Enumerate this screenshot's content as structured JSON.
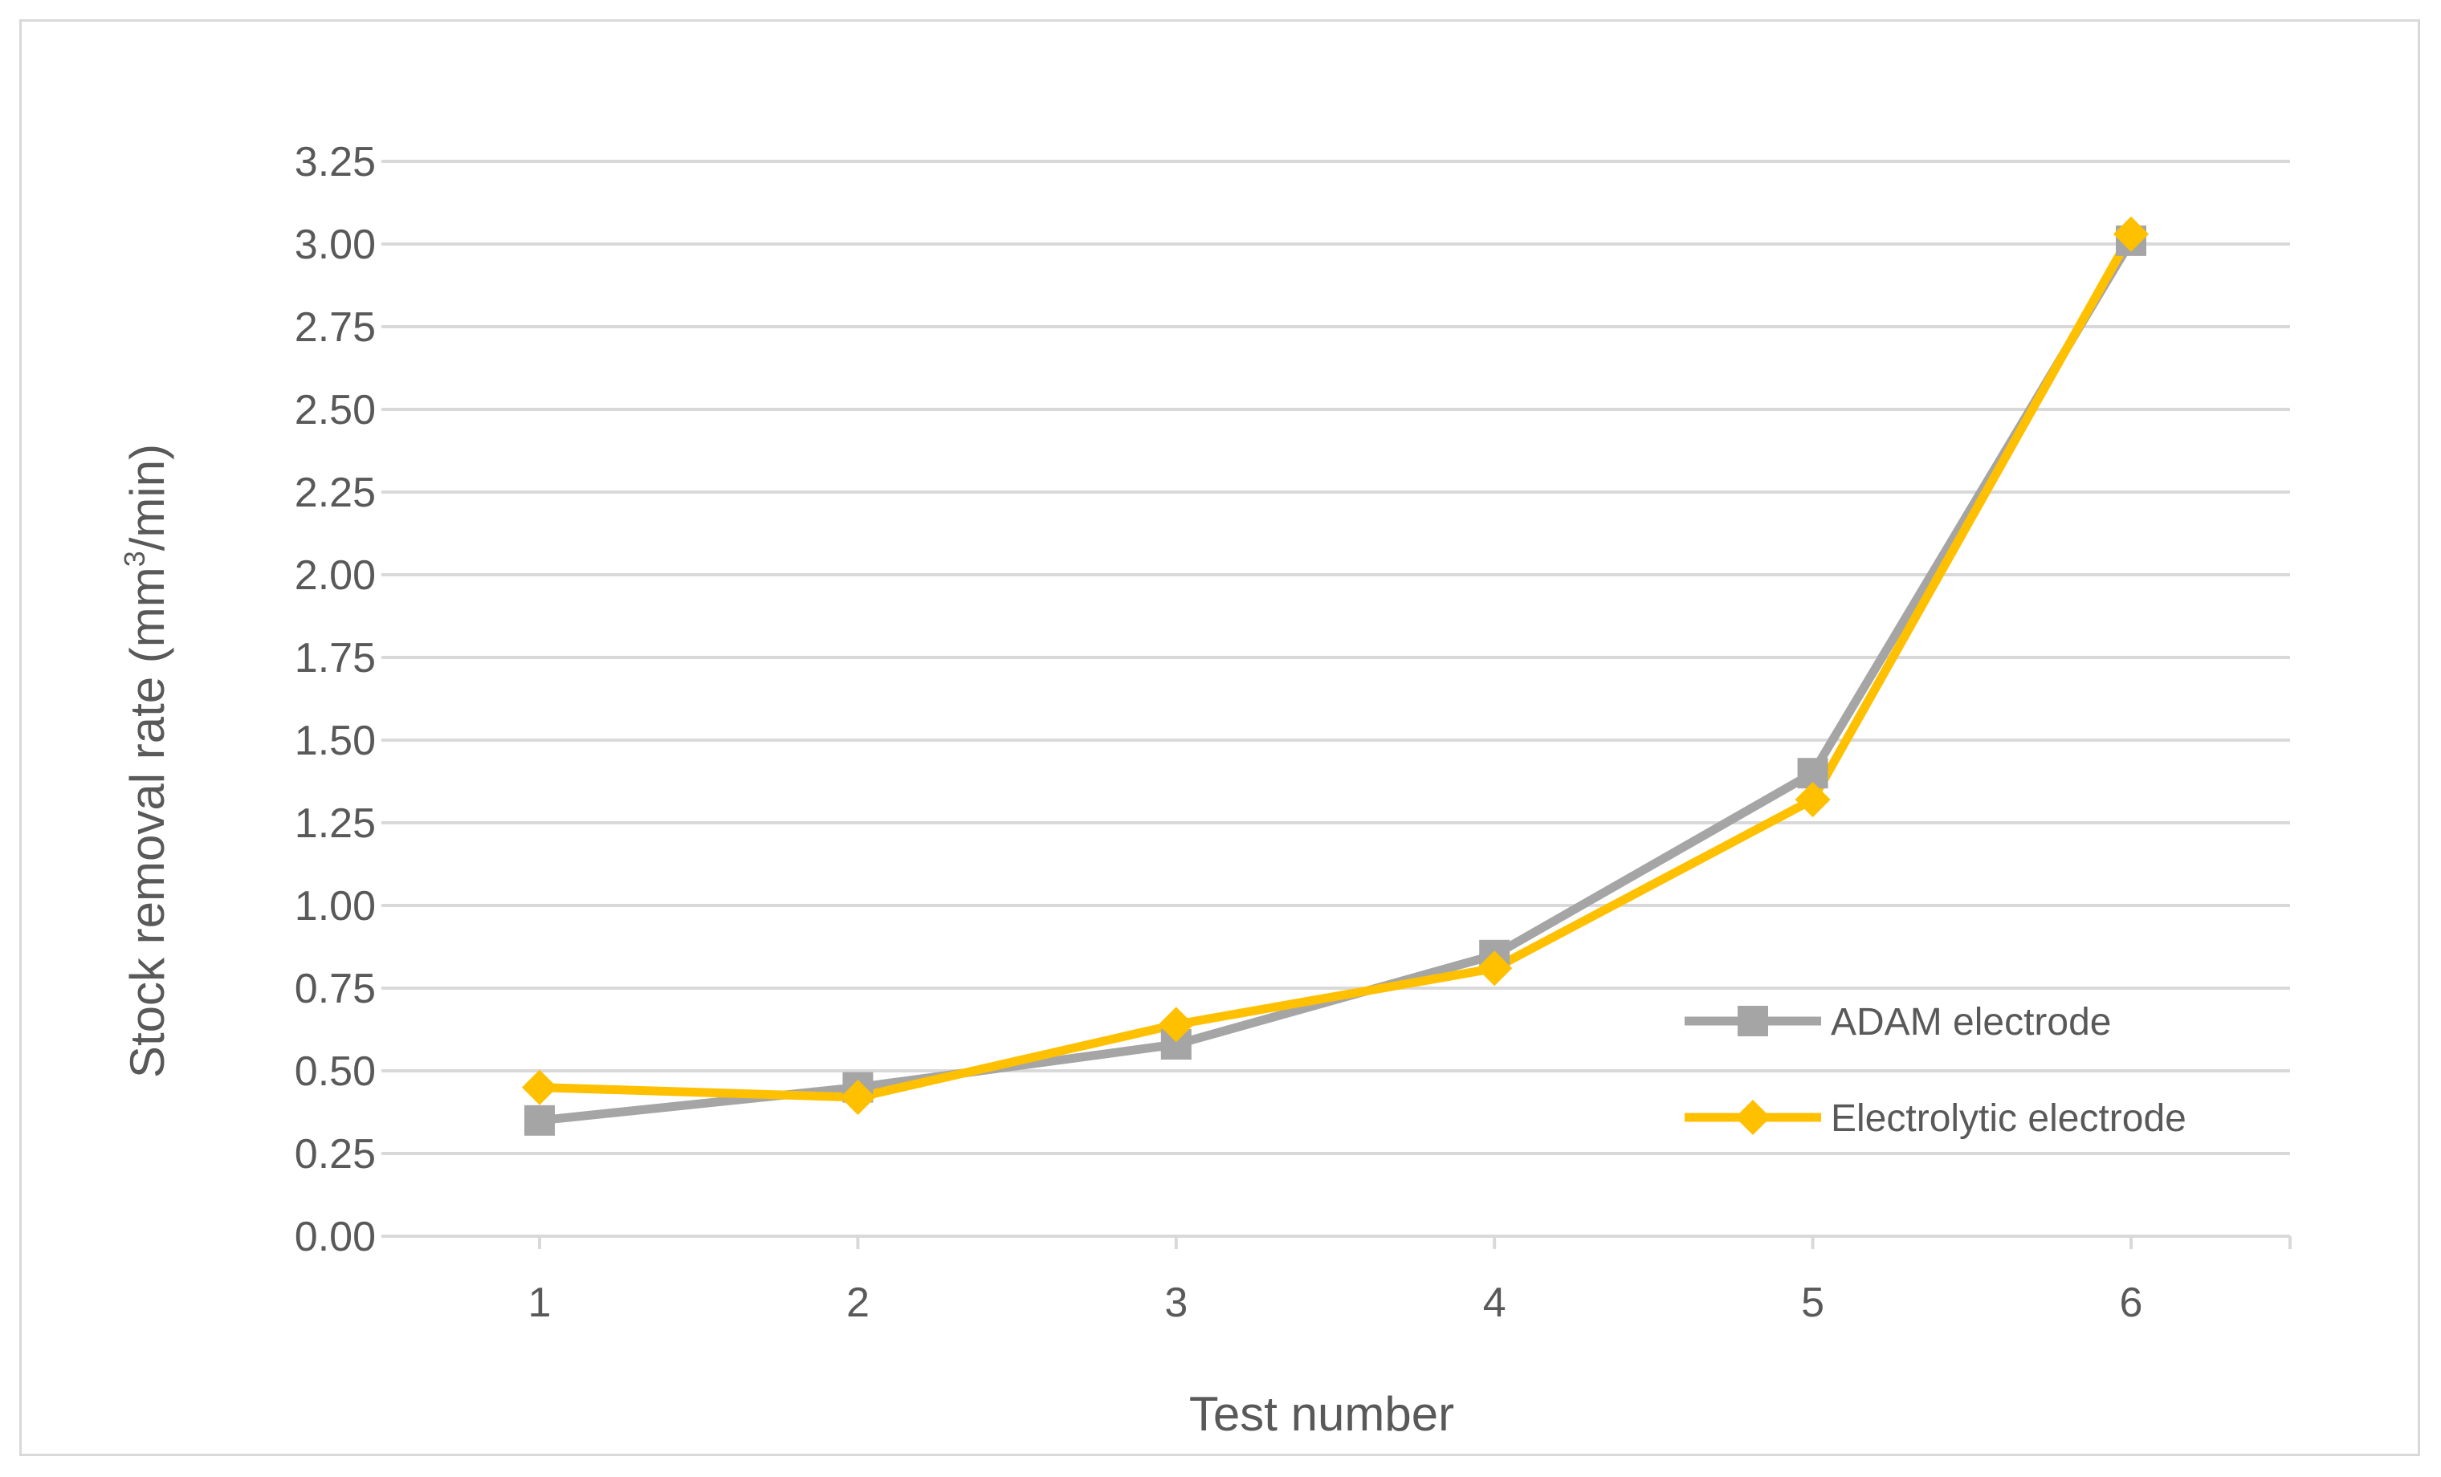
{
  "chart_data": {
    "type": "line",
    "title": "",
    "xlabel": "Test number",
    "ylabel_main": "Stock removal rate (mm",
    "ylabel_sup": "3",
    "ylabel_tail": "/min)",
    "x": [
      "1",
      "2",
      "3",
      "4",
      "5",
      "6"
    ],
    "ylim": [
      0,
      3.25
    ],
    "yticks": [
      "0.00",
      "0.25",
      "0.50",
      "0.75",
      "1.00",
      "1.25",
      "1.50",
      "1.75",
      "2.00",
      "2.25",
      "2.50",
      "2.75",
      "3.00",
      "3.25"
    ],
    "ytick_values": [
      0,
      0.25,
      0.5,
      0.75,
      1.0,
      1.25,
      1.5,
      1.75,
      2.0,
      2.25,
      2.5,
      2.75,
      3.0,
      3.25
    ],
    "grid": true,
    "legend_position": "bottom-right",
    "series": [
      {
        "name": "ADAM electrode",
        "color": "#a5a5a5",
        "marker": "square",
        "values": [
          0.35,
          0.45,
          0.58,
          0.85,
          1.4,
          3.01
        ]
      },
      {
        "name": "Electrolytic electrode",
        "color": "#ffc000",
        "marker": "diamond",
        "values": [
          0.45,
          0.42,
          0.64,
          0.81,
          1.32,
          3.03
        ]
      }
    ]
  }
}
